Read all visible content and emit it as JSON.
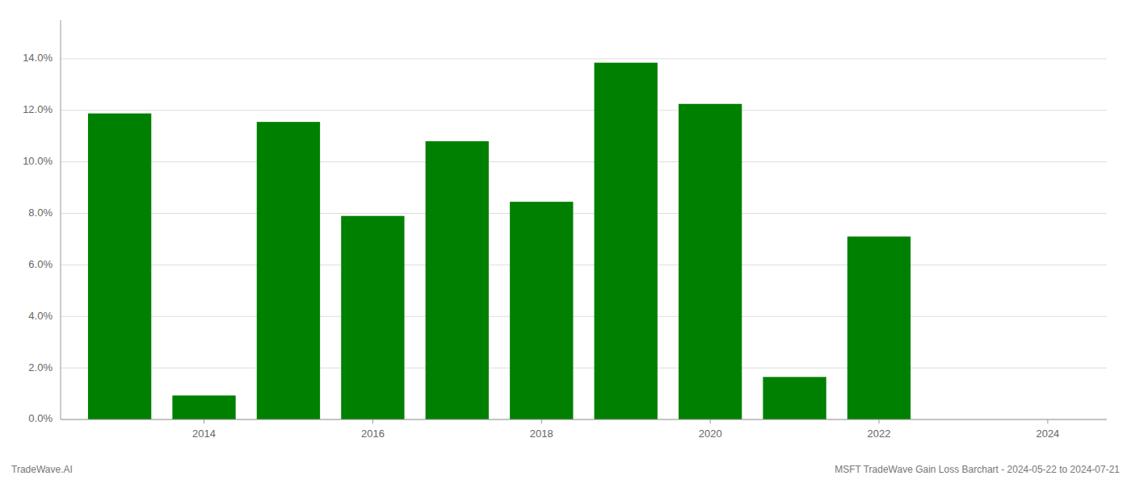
{
  "chart_data": {
    "type": "bar",
    "x": [
      2013,
      2014,
      2015,
      2016,
      2017,
      2018,
      2019,
      2020,
      2021,
      2022
    ],
    "values": [
      0.1188,
      0.0093,
      0.1155,
      0.079,
      0.108,
      0.0845,
      0.1385,
      0.1225,
      0.0165,
      0.071
    ],
    "color": "#008000",
    "xlim": [
      2012.3,
      2024.7
    ],
    "xticks": [
      2014,
      2016,
      2018,
      2020,
      2022,
      2024
    ],
    "ylim": [
      0,
      0.155
    ],
    "yticks": [
      {
        "value": 0.0,
        "label": "0.0%"
      },
      {
        "value": 0.02,
        "label": "2.0%"
      },
      {
        "value": 0.04,
        "label": "4.0%"
      },
      {
        "value": 0.06,
        "label": "6.0%"
      },
      {
        "value": 0.08,
        "label": "8.0%"
      },
      {
        "value": 0.1,
        "label": "10.0%"
      },
      {
        "value": 0.12,
        "label": "12.0%"
      },
      {
        "value": 0.14,
        "label": "14.0%"
      }
    ],
    "grid": true,
    "annotations": [
      "TradeWave.AI",
      "MSFT TradeWave Gain Loss Barchart - 2024-05-22 to 2024-07-21"
    ]
  }
}
